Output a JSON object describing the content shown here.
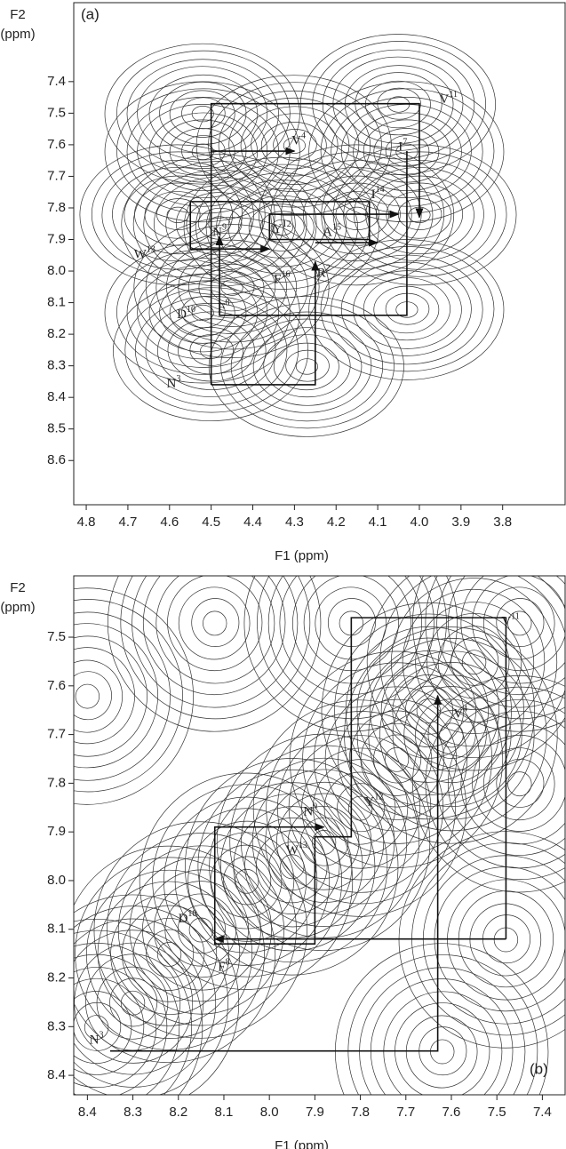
{
  "chart_data": [
    {
      "type": "contour",
      "panel_label": "(a)",
      "xlabel": "F1 (ppm)",
      "ylabel": [
        "F2",
        "(ppm)"
      ],
      "xlim": [
        4.83,
        3.65
      ],
      "xticks": [
        4.8,
        4.7,
        4.6,
        4.5,
        4.4,
        4.3,
        4.2,
        4.1,
        {
          "value": 4.0,
          "label": "4.0"
        },
        3.9,
        3.8
      ],
      "ylim": [
        7.15,
        8.74
      ],
      "yticks": [
        7.4,
        7.5,
        7.6,
        7.7,
        7.8,
        7.9,
        {
          "value": 8.0,
          "label": "8.0"
        },
        8.1,
        8.2,
        8.3,
        8.4,
        8.5,
        8.6
      ],
      "peaks": {
        "x": [
          4.52,
          4.52,
          4.3,
          4.05,
          4.03,
          4.58,
          4.48,
          4.33,
          4.15,
          4.0,
          4.52,
          4.5,
          4.27,
          4.03,
          4.45
        ],
        "y": [
          7.5,
          7.62,
          7.6,
          7.47,
          7.62,
          7.82,
          7.85,
          7.86,
          7.82,
          7.82,
          8.13,
          8.25,
          8.3,
          8.12,
          8.05
        ]
      },
      "walk": [
        {
          "x": [
            4.5,
            4.25,
            4.25
          ],
          "y": [
            8.36,
            8.36,
            7.97
          ]
        },
        {
          "x": [
            4.5,
            4.5,
            4.0,
            4.0
          ],
          "y": [
            8.36,
            7.47,
            7.47,
            7.83
          ]
        },
        {
          "x": [
            4.03,
            4.03,
            4.48,
            4.48
          ],
          "y": [
            7.62,
            8.14,
            8.14,
            7.89
          ]
        },
        {
          "x": [
            4.5,
            4.3
          ],
          "y": [
            7.62,
            7.62
          ]
        },
        {
          "x": [
            4.55,
            4.12,
            4.12,
            4.36,
            4.36,
            4.05
          ],
          "y": [
            7.78,
            7.78,
            7.9,
            7.9,
            7.82,
            7.82
          ]
        },
        {
          "x": [
            4.55,
            4.55,
            4.36
          ],
          "y": [
            7.78,
            7.93,
            7.93
          ]
        },
        {
          "x": [
            4.25,
            4.1
          ],
          "y": [
            7.91,
            7.91
          ]
        }
      ],
      "annotations": [
        {
          "text": "V",
          "sup": "11",
          "x": 3.93,
          "y": 7.46
        },
        {
          "text": "V",
          "sup": "4",
          "x": 4.29,
          "y": 7.59
        },
        {
          "text": "I",
          "sup": "7",
          "x": 4.04,
          "y": 7.61
        },
        {
          "text": "I",
          "sup": "14",
          "x": 4.1,
          "y": 7.76
        },
        {
          "text": "N",
          "sup": "9",
          "x": 4.48,
          "y": 7.88
        },
        {
          "text": "Y",
          "sup": "12",
          "x": 4.33,
          "y": 7.87
        },
        {
          "text": "A",
          "sup": "15",
          "x": 4.21,
          "y": 7.88
        },
        {
          "text": "W",
          "sup": "13",
          "x": 4.66,
          "y": 7.95
        },
        {
          "text": "F",
          "sup": "16",
          "x": 4.33,
          "y": 8.03
        },
        {
          "text": "R",
          "sup": "2",
          "x": 4.23,
          "y": 8.01
        },
        {
          "text": "D",
          "sup": "10",
          "x": 4.56,
          "y": 8.14
        },
        {
          "text": "F",
          "sup": "8",
          "x": 4.47,
          "y": 8.12
        },
        {
          "text": "N",
          "sup": "3",
          "x": 4.59,
          "y": 8.36
        }
      ]
    },
    {
      "type": "contour",
      "panel_label": "(b)",
      "xlabel": "F1 (ppm)",
      "ylabel": [
        "F2",
        "(ppm)"
      ],
      "xlim": [
        8.43,
        7.35
      ],
      "xticks": [
        8.4,
        8.3,
        8.2,
        8.1,
        {
          "value": 8.0,
          "label": "8.0"
        },
        7.9,
        7.8,
        7.7,
        7.6,
        7.5,
        7.4
      ],
      "ylim": [
        7.374,
        8.44
      ],
      "yticks": [
        7.5,
        7.6,
        7.7,
        7.8,
        7.9,
        {
          "value": 8.0,
          "label": "8.0"
        },
        8.1,
        8.2,
        8.3,
        8.4
      ],
      "peaks": {
        "x": [
          8.38,
          8.3,
          8.22,
          8.15,
          8.05,
          7.95,
          7.88,
          7.8,
          7.72,
          7.65,
          7.55,
          7.45,
          8.12,
          8.4,
          7.48,
          7.62,
          7.82,
          7.6,
          7.45
        ],
        "y": [
          8.3,
          8.25,
          8.15,
          8.1,
          8.0,
          7.97,
          7.92,
          7.85,
          7.75,
          7.65,
          7.55,
          7.47,
          7.47,
          7.62,
          8.12,
          8.35,
          7.47,
          7.7,
          7.8
        ]
      },
      "walk": [
        {
          "x": [
            8.35,
            7.63,
            7.63
          ],
          "y": [
            8.35,
            8.35,
            7.62
          ]
        },
        {
          "x": [
            7.48,
            7.48,
            7.82,
            7.82,
            7.9,
            7.9,
            8.12,
            8.12,
            7.88
          ],
          "y": [
            8.12,
            7.46,
            7.46,
            7.91,
            7.91,
            8.13,
            8.13,
            7.89,
            7.89
          ]
        },
        {
          "x": [
            7.48,
            8.12
          ],
          "y": [
            8.12,
            8.12
          ]
        }
      ],
      "annotations": [
        {
          "text": "V",
          "sup": "11",
          "x": 7.47,
          "y": 7.47
        },
        {
          "text": "V",
          "sup": "4",
          "x": 7.58,
          "y": 7.66
        },
        {
          "text": "Y",
          "sup": "12",
          "x": 7.77,
          "y": 7.84
        },
        {
          "text": "N",
          "sup": "9",
          "x": 7.91,
          "y": 7.86
        },
        {
          "text": "W",
          "sup": "13",
          "x": 7.94,
          "y": 7.94
        },
        {
          "text": "D",
          "sup": "10",
          "x": 8.18,
          "y": 8.08
        },
        {
          "text": "F",
          "sup": "8",
          "x": 8.1,
          "y": 8.18
        },
        {
          "text": "N",
          "sup": "3",
          "x": 8.38,
          "y": 8.33
        }
      ]
    }
  ]
}
